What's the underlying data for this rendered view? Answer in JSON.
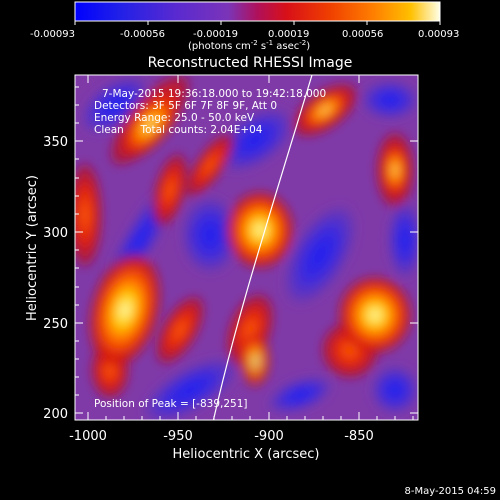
{
  "colorbar": {
    "ticks": [
      "-0.00093",
      "-0.00056",
      "-0.00019",
      "0.00019",
      "0.00056",
      "0.00093"
    ],
    "unit_parts": [
      "(photons cm",
      "-2",
      " s",
      "-1",
      " asec",
      "-2",
      ")"
    ]
  },
  "image": {
    "title": "Reconstructed RHESSI Image",
    "info_lines": [
      "7-May-2015 19:36:18.000 to 19:42:18.000",
      "Detectors: 3F 5F 6F 7F 8F 9F, Att 0",
      "Energy Range: 25.0 - 50.0 keV",
      "Clean     Total counts: 2.04E+04"
    ],
    "peak_text": "Position of Peak = [-839,251]"
  },
  "axes": {
    "xlabel": "Heliocentric X (arcsec)",
    "ylabel": "Heliocentric Y (arcsec)",
    "x_ticks": [
      "-1000",
      "-950",
      "-900",
      "-850"
    ],
    "y_ticks": [
      "200",
      "250",
      "300",
      "350"
    ]
  },
  "footer": {
    "timestamp": "8-May-2015 04:59"
  },
  "colors": {
    "background": "#000000",
    "axes": "#ffffff",
    "limb_line": "#ffffff"
  }
}
